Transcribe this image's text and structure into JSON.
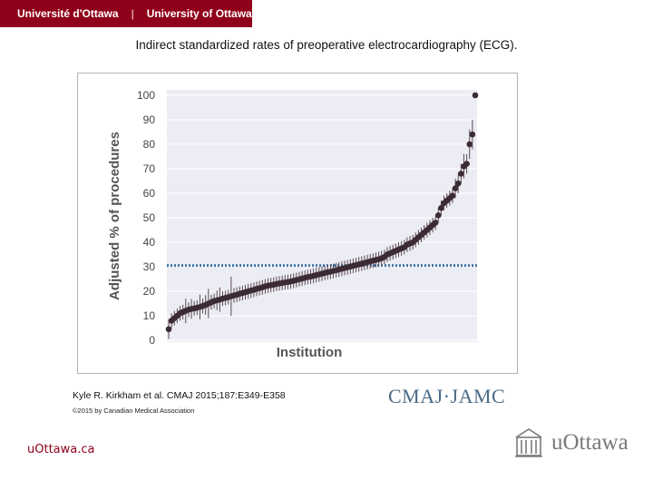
{
  "header": {
    "university_fr": "Université d'Ottawa",
    "separator": "|",
    "university_en": "University of Ottawa"
  },
  "slide_title": "Indirect standardized rates of preoperative electrocardiography (ECG).",
  "citation": "Kyle R. Kirkham et al. CMAJ 2015;187:E349-E358",
  "copyright": "©2015 by Canadian Medical Association",
  "journal_logo": "CMAJ·JAMC",
  "footer": {
    "site": "uOttawa.ca",
    "logo_text": "uOttawa"
  },
  "colors": {
    "banner": "#8f001a",
    "points": "#3b2b32",
    "reference_line": "#3f74a8",
    "plot_bg": "#ececf4"
  },
  "chart_data": {
    "type": "scatter",
    "xlabel": "Institution",
    "ylabel": "Adjusted % of procedures",
    "ylim": [
      0,
      100
    ],
    "yticks": [
      0,
      10,
      20,
      30,
      40,
      50,
      60,
      70,
      80,
      90,
      100
    ],
    "grid": true,
    "reference_line": {
      "y": 30.5,
      "style": "dotted"
    },
    "series": [
      {
        "values": [
          4.5,
          8,
          9,
          10,
          11,
          11.5,
          12,
          12.5,
          12.8,
          13,
          13.3,
          13.6,
          14,
          14.4,
          15,
          15.5,
          16,
          16.3,
          16.6,
          17,
          17.3,
          17.6,
          18,
          18.3,
          18.6,
          19,
          19.3,
          19.6,
          20,
          20.3,
          20.6,
          21,
          21.3,
          21.6,
          22,
          22.3,
          22.5,
          22.7,
          23,
          23.2,
          23.4,
          23.6,
          23.8,
          24,
          24.3,
          24.6,
          24.9,
          25.2,
          25.5,
          25.8,
          26,
          26.3,
          26.6,
          26.9,
          27.2,
          27.5,
          27.8,
          28,
          28.3,
          28.6,
          28.9,
          29.2,
          29.5,
          29.8,
          30.1,
          30.4,
          30.7,
          31,
          31.3,
          31.6,
          31.9,
          32.2,
          32.5,
          32.8,
          33.1,
          33.5,
          34,
          35,
          35.5,
          36,
          36.5,
          37,
          37.5,
          38,
          39,
          39.5,
          40,
          41,
          42,
          43,
          44,
          45,
          46,
          47,
          48,
          51,
          54,
          56,
          57,
          58,
          59,
          62,
          64,
          68,
          71,
          72,
          80,
          84,
          100
        ],
        "error_bars": [
          4,
          3,
          3,
          3,
          3,
          3,
          5,
          3,
          4,
          3,
          3,
          5,
          3,
          4,
          6,
          3,
          3,
          4,
          5,
          3,
          3,
          3,
          8,
          3,
          3,
          3,
          3,
          3,
          3,
          3,
          3,
          3,
          3,
          3,
          3,
          3,
          3,
          3,
          3,
          3,
          3,
          3,
          3,
          3,
          3,
          3,
          3,
          3,
          3,
          3,
          3,
          3,
          3,
          3,
          3,
          3,
          3,
          3,
          3,
          3,
          3,
          3,
          3,
          3,
          3,
          3,
          3,
          3,
          3,
          3,
          3,
          3,
          3,
          3,
          3,
          3,
          3,
          3,
          3,
          3,
          3,
          3,
          3,
          3,
          3,
          3,
          3,
          3,
          3,
          3,
          3,
          3,
          3,
          3,
          3,
          3,
          3,
          3,
          3,
          3,
          3,
          4,
          4,
          4,
          5,
          4,
          6,
          6,
          0
        ]
      }
    ]
  }
}
